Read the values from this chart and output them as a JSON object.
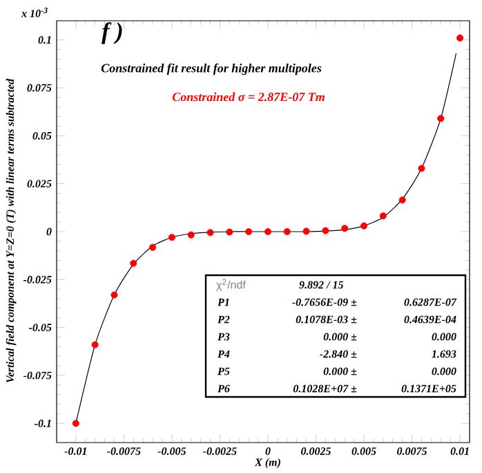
{
  "chart_data": {
    "type": "scatter",
    "xlabel": "X (m)",
    "ylabel": "Vertical field component at Y=Z=0 (T) with linear terms subtracted",
    "xlim": [
      -0.011,
      0.0105
    ],
    "ylim": [
      -0.11,
      0.11
    ],
    "xticks": [
      -0.01,
      -0.0075,
      -0.005,
      -0.0025,
      0,
      0.0025,
      0.005,
      0.0075,
      0.01
    ],
    "yticks": [
      -0.1,
      -0.075,
      -0.05,
      -0.025,
      0,
      0.025,
      0.05,
      0.075,
      0.1
    ],
    "line_style": "solid",
    "series": [
      {
        "type": "line",
        "marker": "none",
        "color": "#000000",
        "x": [
          -0.01,
          -0.009,
          -0.008,
          -0.007,
          -0.006,
          -0.005,
          -0.004,
          -0.003,
          -0.002,
          -0.001,
          0,
          0.001,
          0.002,
          0.003,
          0.004,
          0.005,
          0.006,
          0.007,
          0.008,
          0.009,
          0.0098
        ],
        "values": [
          -0.1,
          -0.059,
          -0.033,
          -0.017,
          -0.0075,
          -0.003,
          -0.001,
          -0.0003,
          0,
          0,
          0,
          0,
          0,
          0.0003,
          0.001,
          0.003,
          0.0075,
          0.017,
          0.033,
          0.059,
          0.093
        ]
      },
      {
        "marker": "circle",
        "color": "#ff0000",
        "x": [
          -0.01,
          -0.009,
          -0.008,
          -0.007,
          -0.006,
          -0.005,
          -0.004,
          -0.003,
          -0.002,
          -0.001,
          0,
          0.001,
          0.002,
          0.003,
          0.004,
          0.005,
          0.006,
          0.007,
          0.008,
          0.009,
          0.01
        ],
        "values": [
          -0.1,
          -0.059,
          -0.033,
          -0.0165,
          -0.0082,
          -0.003,
          -0.0017,
          -0.0005,
          -0.0002,
          0,
          0,
          0,
          0.0002,
          0.0005,
          0.0017,
          0.003,
          0.0082,
          0.0165,
          0.033,
          0.059,
          0.101
        ]
      }
    ],
    "annotations": [
      "f )",
      "Constrained fit result for higher multipoles",
      "Constrained σ = 2.87E-07 Tm",
      "x 10$^{-3}$",
      "χ$^{2}$/ndf",
      "9.892   /   15",
      "P1",
      "-0.7656E-09 ±",
      "0.6287E-07",
      "P2",
      "0.1078E-03 ±",
      "0.4639E-04",
      "P3",
      "0.000 ±",
      "0.000",
      "P4",
      "-2.840 ±",
      "1.693",
      "P5",
      "0.000 ±",
      "0.000",
      "P6",
      "0.1028E+07 ±",
      "0.1371E+05"
    ]
  }
}
